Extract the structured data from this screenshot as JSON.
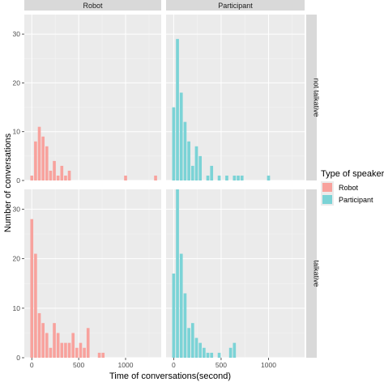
{
  "chart_data": {
    "type": "bar",
    "xlabel": "Time of conversations(second)",
    "ylabel": "Number of conversations",
    "xlim": [
      -80,
      1380
    ],
    "ylim": [
      0,
      34
    ],
    "x_ticks": [
      0,
      500,
      1000
    ],
    "y_ticks": [
      0,
      10,
      20,
      30
    ],
    "bin_width": 40,
    "grid": true,
    "facet_columns": [
      "Robot",
      "Participant"
    ],
    "facet_rows": [
      "not talkative",
      "talkative"
    ],
    "legend": {
      "title": "Type of speaker",
      "placement": "right",
      "entries": [
        {
          "label": "Robot",
          "color": "#f8a29d"
        },
        {
          "label": "Participant",
          "color": "#7bd3d6"
        }
      ]
    },
    "panels": [
      {
        "column": "Robot",
        "row": "not talkative",
        "color": "#f8a29d",
        "x": [
          0,
          40,
          80,
          120,
          160,
          200,
          240,
          280,
          320,
          360,
          400,
          440,
          1000,
          1320
        ],
        "values": [
          1,
          8,
          11,
          9,
          7,
          2,
          4,
          1,
          3,
          1,
          2,
          0,
          1,
          1
        ]
      },
      {
        "column": "Participant",
        "row": "not talkative",
        "color": "#7bd3d6",
        "x": [
          0,
          40,
          80,
          120,
          160,
          200,
          240,
          280,
          320,
          360,
          400,
          440,
          480,
          520,
          560,
          600,
          640,
          680,
          720,
          760,
          800,
          840,
          880,
          920,
          960,
          1000
        ],
        "values": [
          15,
          29,
          18,
          12,
          8,
          3,
          7,
          5,
          0,
          1,
          3,
          0,
          1,
          0,
          1,
          0,
          1,
          1,
          1,
          0,
          0,
          0,
          0,
          0,
          0,
          1
        ]
      },
      {
        "column": "Robot",
        "row": "talkative",
        "color": "#f8a29d",
        "x": [
          0,
          40,
          80,
          120,
          160,
          200,
          240,
          280,
          320,
          360,
          400,
          440,
          480,
          520,
          560,
          600,
          640,
          680,
          720,
          760
        ],
        "values": [
          28,
          21,
          9,
          7,
          5,
          2,
          7,
          5,
          3,
          3,
          3,
          5,
          2,
          3,
          2,
          6,
          0,
          0,
          1,
          1
        ]
      },
      {
        "column": "Participant",
        "row": "talkative",
        "color": "#7bd3d6",
        "x": [
          0,
          40,
          80,
          120,
          160,
          200,
          240,
          280,
          320,
          360,
          400,
          440,
          480,
          520,
          560,
          600,
          640
        ],
        "values": [
          17,
          34,
          21,
          13,
          6,
          7,
          4,
          3,
          2,
          1,
          1,
          0,
          1,
          0,
          0,
          2,
          3
        ]
      }
    ]
  }
}
